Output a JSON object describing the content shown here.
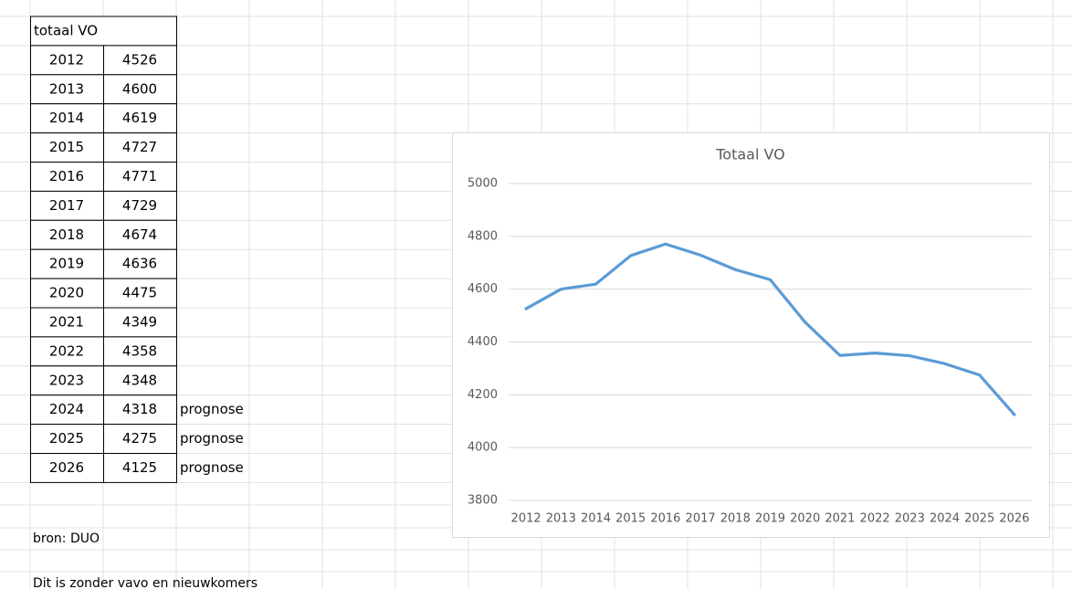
{
  "table": {
    "header": "totaal VO",
    "rows": [
      [
        "2012",
        "4526"
      ],
      [
        "2013",
        "4600"
      ],
      [
        "2014",
        "4619"
      ],
      [
        "2015",
        "4727"
      ],
      [
        "2016",
        "4771"
      ],
      [
        "2017",
        "4729"
      ],
      [
        "2018",
        "4674"
      ],
      [
        "2019",
        "4636"
      ],
      [
        "2020",
        "4475"
      ],
      [
        "2021",
        "4349"
      ],
      [
        "2022",
        "4358"
      ],
      [
        "2023",
        "4348"
      ],
      [
        "2024",
        "4318",
        "prognose"
      ],
      [
        "2025",
        "4275",
        "prognose"
      ],
      [
        "2026",
        "4125",
        "prognose"
      ]
    ]
  },
  "notes": [
    "bron: DUO",
    "Dit is zonder vavo en nieuwkomers"
  ],
  "chart_data": {
    "type": "line",
    "title": "Totaal VO",
    "categories": [
      "2012",
      "2013",
      "2014",
      "2015",
      "2016",
      "2017",
      "2018",
      "2019",
      "2020",
      "2021",
      "2022",
      "2023",
      "2024",
      "2025",
      "2026"
    ],
    "series": [
      {
        "name": "totaal VO",
        "color": "#5b9bd5",
        "values": [
          4526,
          4600,
          4619,
          4727,
          4771,
          4729,
          4674,
          4636,
          4475,
          4349,
          4358,
          4348,
          4318,
          4275,
          4125
        ]
      }
    ],
    "ylim": [
      3800,
      5000
    ],
    "yticks": [
      3800,
      4000,
      4200,
      4400,
      4600,
      4800,
      5000
    ],
    "grid": true,
    "legend": false
  }
}
